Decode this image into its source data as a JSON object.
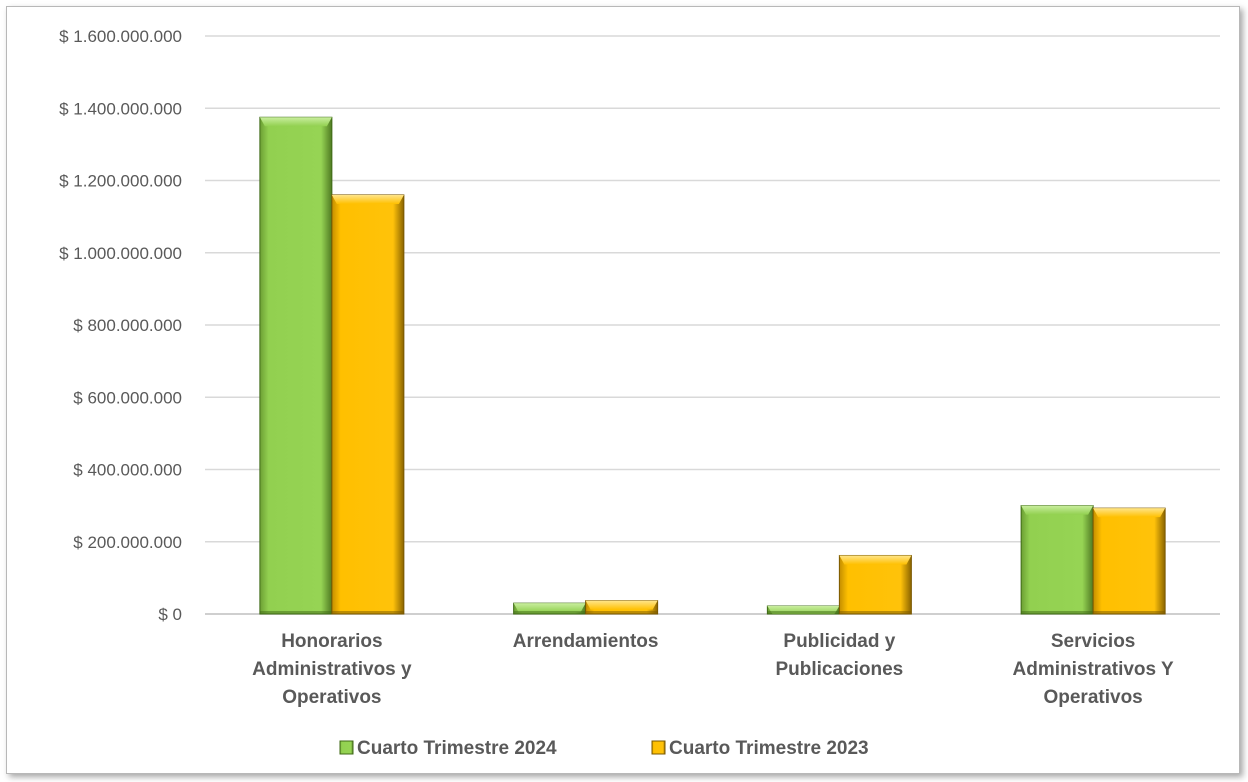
{
  "chart_data": {
    "type": "bar",
    "title": "",
    "xlabel": "",
    "ylabel": "",
    "ylim": [
      0,
      1600000000
    ],
    "yticks": [
      0,
      200000000,
      400000000,
      600000000,
      800000000,
      1000000000,
      1200000000,
      1400000000,
      1600000000
    ],
    "ytick_labels": [
      "$ 0",
      "$ 200.000.000",
      "$ 400.000.000",
      "$ 600.000.000",
      "$ 800.000.000",
      "$ 1.000.000.000",
      "$ 1.200.000.000",
      "$ 1.400.000.000",
      "$ 1.600.000.000"
    ],
    "grid": true,
    "legend_position": "bottom",
    "categories": [
      [
        "Honorarios",
        "Administrativos y",
        "Operativos"
      ],
      [
        "Arrendamientos"
      ],
      [
        "Publicidad y",
        "Publicaciones"
      ],
      [
        "Servicios",
        "Administrativos Y",
        "Operativos"
      ]
    ],
    "series": [
      {
        "name": "Cuarto Trimestre 2024",
        "color": "#92D050",
        "values": [
          1375000000,
          30000000,
          22000000,
          300000000
        ]
      },
      {
        "name": "Cuarto Trimestre 2023",
        "color": "#FFC000",
        "values": [
          1160000000,
          37000000,
          162000000,
          293000000
        ]
      }
    ]
  }
}
